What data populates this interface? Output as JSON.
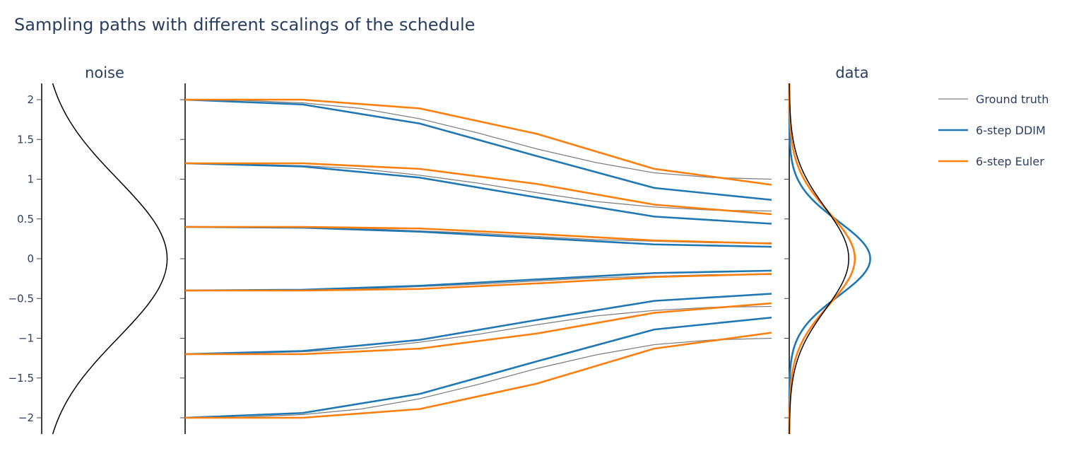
{
  "chart_data": {
    "type": "line",
    "title": "Sampling paths with different scalings of the schedule",
    "panels": {
      "noise": {
        "title": "noise",
        "curve": "standard-normal-density",
        "ylim": [
          -2.2,
          2.2
        ]
      },
      "paths": {
        "title": "",
        "x": [
          0,
          1,
          2,
          3,
          4,
          5
        ],
        "ylim": [
          -2.2,
          2.2
        ]
      },
      "data": {
        "title": "data",
        "ylim": [
          -2.2,
          2.2
        ]
      }
    },
    "yaxis": {
      "ticks": [
        2,
        1.5,
        1,
        0.5,
        0,
        -0.5,
        -1,
        -1.5,
        -2
      ],
      "tick_labels": [
        "2",
        "1.5",
        "1",
        "0.5",
        "0",
        "−0.5",
        "−1",
        "−1.5",
        "−2"
      ]
    },
    "legend": {
      "placement": "right"
    },
    "series": [
      {
        "name": "Ground truth",
        "color": "#808080",
        "x": [
          0,
          0.5,
          1,
          1.5,
          2,
          2.5,
          3,
          3.5,
          4,
          4.5,
          5
        ],
        "paths": [
          [
            2.0,
            1.99,
            1.96,
            1.89,
            1.76,
            1.58,
            1.38,
            1.21,
            1.08,
            1.02,
            1.0
          ],
          [
            1.2,
            1.19,
            1.17,
            1.13,
            1.05,
            0.95,
            0.83,
            0.72,
            0.65,
            0.61,
            0.6
          ],
          [
            0.4,
            0.4,
            0.39,
            0.38,
            0.35,
            0.32,
            0.28,
            0.24,
            0.22,
            0.2,
            0.2
          ],
          [
            -0.4,
            -0.4,
            -0.39,
            -0.38,
            -0.35,
            -0.32,
            -0.28,
            -0.24,
            -0.22,
            -0.2,
            -0.2
          ],
          [
            -1.2,
            -1.19,
            -1.17,
            -1.13,
            -1.05,
            -0.95,
            -0.83,
            -0.72,
            -0.65,
            -0.61,
            -0.6
          ],
          [
            -2.0,
            -1.99,
            -1.96,
            -1.89,
            -1.76,
            -1.58,
            -1.38,
            -1.21,
            -1.08,
            -1.02,
            -1.0
          ]
        ],
        "density": {
          "mean": 0,
          "std": 0.64
        }
      },
      {
        "name": "6-step DDIM",
        "color": "#1f77b4",
        "x": [
          0,
          1,
          2,
          3,
          4,
          5
        ],
        "paths": [
          [
            2.0,
            1.94,
            1.7,
            1.29,
            0.89,
            0.74
          ],
          [
            1.2,
            1.16,
            1.02,
            0.77,
            0.53,
            0.44
          ],
          [
            0.4,
            0.39,
            0.34,
            0.26,
            0.18,
            0.15
          ],
          [
            -0.4,
            -0.39,
            -0.34,
            -0.26,
            -0.18,
            -0.15
          ],
          [
            -1.2,
            -1.16,
            -1.02,
            -0.77,
            -0.53,
            -0.44
          ],
          [
            -2.0,
            -1.94,
            -1.7,
            -1.29,
            -0.89,
            -0.74
          ]
        ],
        "density": {
          "mean": 0,
          "std": 0.47
        }
      },
      {
        "name": "6-step Euler",
        "color": "#ff7f0e",
        "x": [
          0,
          1,
          2,
          3,
          4,
          5
        ],
        "paths": [
          [
            2.0,
            2.0,
            1.89,
            1.57,
            1.13,
            0.93
          ],
          [
            1.2,
            1.2,
            1.13,
            0.94,
            0.68,
            0.56
          ],
          [
            0.4,
            0.4,
            0.38,
            0.31,
            0.23,
            0.19
          ],
          [
            -0.4,
            -0.4,
            -0.38,
            -0.31,
            -0.23,
            -0.19
          ],
          [
            -1.2,
            -1.2,
            -1.13,
            -0.94,
            -0.68,
            -0.56
          ],
          [
            -2.0,
            -2.0,
            -1.89,
            -1.57,
            -1.13,
            -0.93
          ]
        ],
        "density": {
          "mean": 0,
          "std": 0.58
        }
      }
    ]
  }
}
